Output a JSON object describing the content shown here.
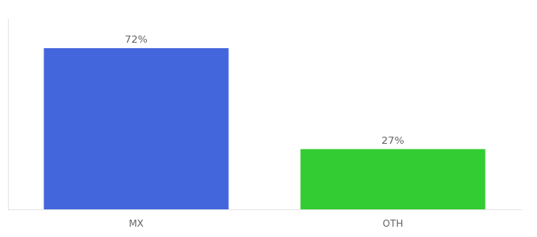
{
  "chart_data": {
    "type": "bar",
    "categories": [
      "MX",
      "OTH"
    ],
    "values": [
      72,
      27
    ],
    "value_labels": [
      "72%",
      "27%"
    ],
    "colors": [
      "#4466DD",
      "#33CC33"
    ],
    "ylim": [
      0,
      85
    ],
    "data_labels": true,
    "tick_labels": "x",
    "grid": false
  }
}
